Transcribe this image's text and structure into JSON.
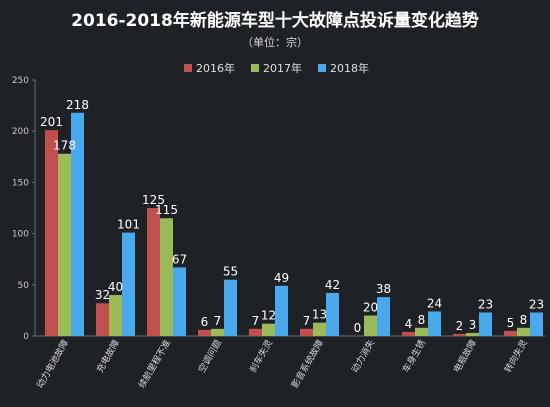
{
  "chart_data": {
    "type": "bar",
    "title": "2016-2018年新能源车型十大故障点投诉量变化趋势",
    "subtitle": "（单位：宗）",
    "categories": [
      "动力电池故障",
      "充电故障",
      "续航里程不准",
      "空调问题",
      "刹车失灵",
      "影音系统故障",
      "动力消失",
      "车身生锈",
      "电瓶故障",
      "转向失灵"
    ],
    "series": [
      {
        "name": "2016年",
        "color": "#c0504d",
        "values": [
          201,
          32,
          125,
          6,
          7,
          7,
          0,
          4,
          2,
          5
        ]
      },
      {
        "name": "2017年",
        "color": "#9bbb59",
        "values": [
          178,
          40,
          115,
          7,
          12,
          13,
          20,
          8,
          3,
          8
        ]
      },
      {
        "name": "2018年",
        "color": "#4aa8ec",
        "values": [
          218,
          101,
          67,
          55,
          49,
          42,
          38,
          24,
          23,
          23
        ]
      }
    ],
    "ylim": [
      0,
      250
    ],
    "yticks": [
      0,
      50,
      100,
      150,
      200,
      250
    ],
    "grid": false,
    "legend_position": "top-center"
  }
}
